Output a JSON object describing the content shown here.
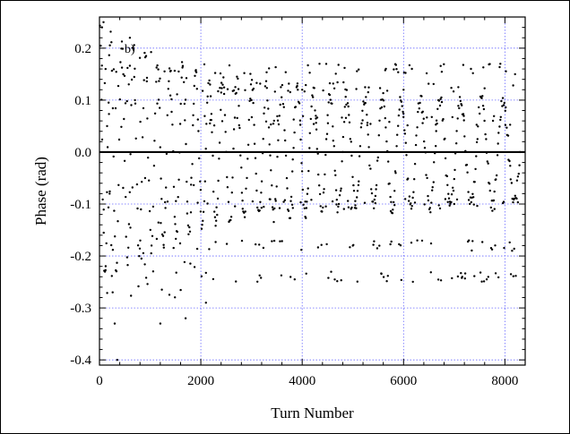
{
  "chart_data": {
    "type": "scatter",
    "title": "",
    "annotation": "b)",
    "xlabel": "Turn Number",
    "ylabel": "Phase (rad)",
    "xlim": [
      0,
      8400
    ],
    "ylim": [
      -0.41,
      0.26
    ],
    "x_ticks": [
      0,
      2000,
      4000,
      6000,
      8000
    ],
    "x_tick_labels": [
      "0",
      "2000",
      "4000",
      "6000",
      "8000"
    ],
    "y_ticks": [
      -0.4,
      -0.3,
      -0.2,
      -0.1,
      0.0,
      0.1,
      0.2
    ],
    "y_tick_labels": [
      "-0.4",
      "-0.3",
      "-0.2",
      "-0.1",
      "0.0",
      "0.1",
      "0.2"
    ],
    "grid": true,
    "reference_line_y": 0.0,
    "colors": {
      "points": "#000000",
      "grid": "#6a6aff",
      "axes": "#000000"
    },
    "series": [
      {
        "description": "dense scatter of phase samples per turn",
        "x_step": 14,
        "x_start": 10,
        "x_end": 8300,
        "sample_points": [
          [
            50,
            0.24
          ],
          [
            80,
            0.25
          ],
          [
            120,
            0.16
          ],
          [
            150,
            0.05
          ],
          [
            200,
            -0.08
          ],
          [
            260,
            -0.27
          ],
          [
            300,
            -0.33
          ],
          [
            350,
            -0.4
          ],
          [
            600,
            0.22
          ],
          [
            700,
            0.1
          ],
          [
            900,
            -0.05
          ],
          [
            1200,
            -0.33
          ],
          [
            1700,
            -0.32
          ],
          [
            2100,
            -0.29
          ],
          [
            3000,
            0.1
          ],
          [
            4000,
            0.12
          ],
          [
            5000,
            -0.18
          ],
          [
            6000,
            0.12
          ],
          [
            7000,
            -0.1
          ],
          [
            8200,
            0.15
          ]
        ]
      }
    ]
  }
}
